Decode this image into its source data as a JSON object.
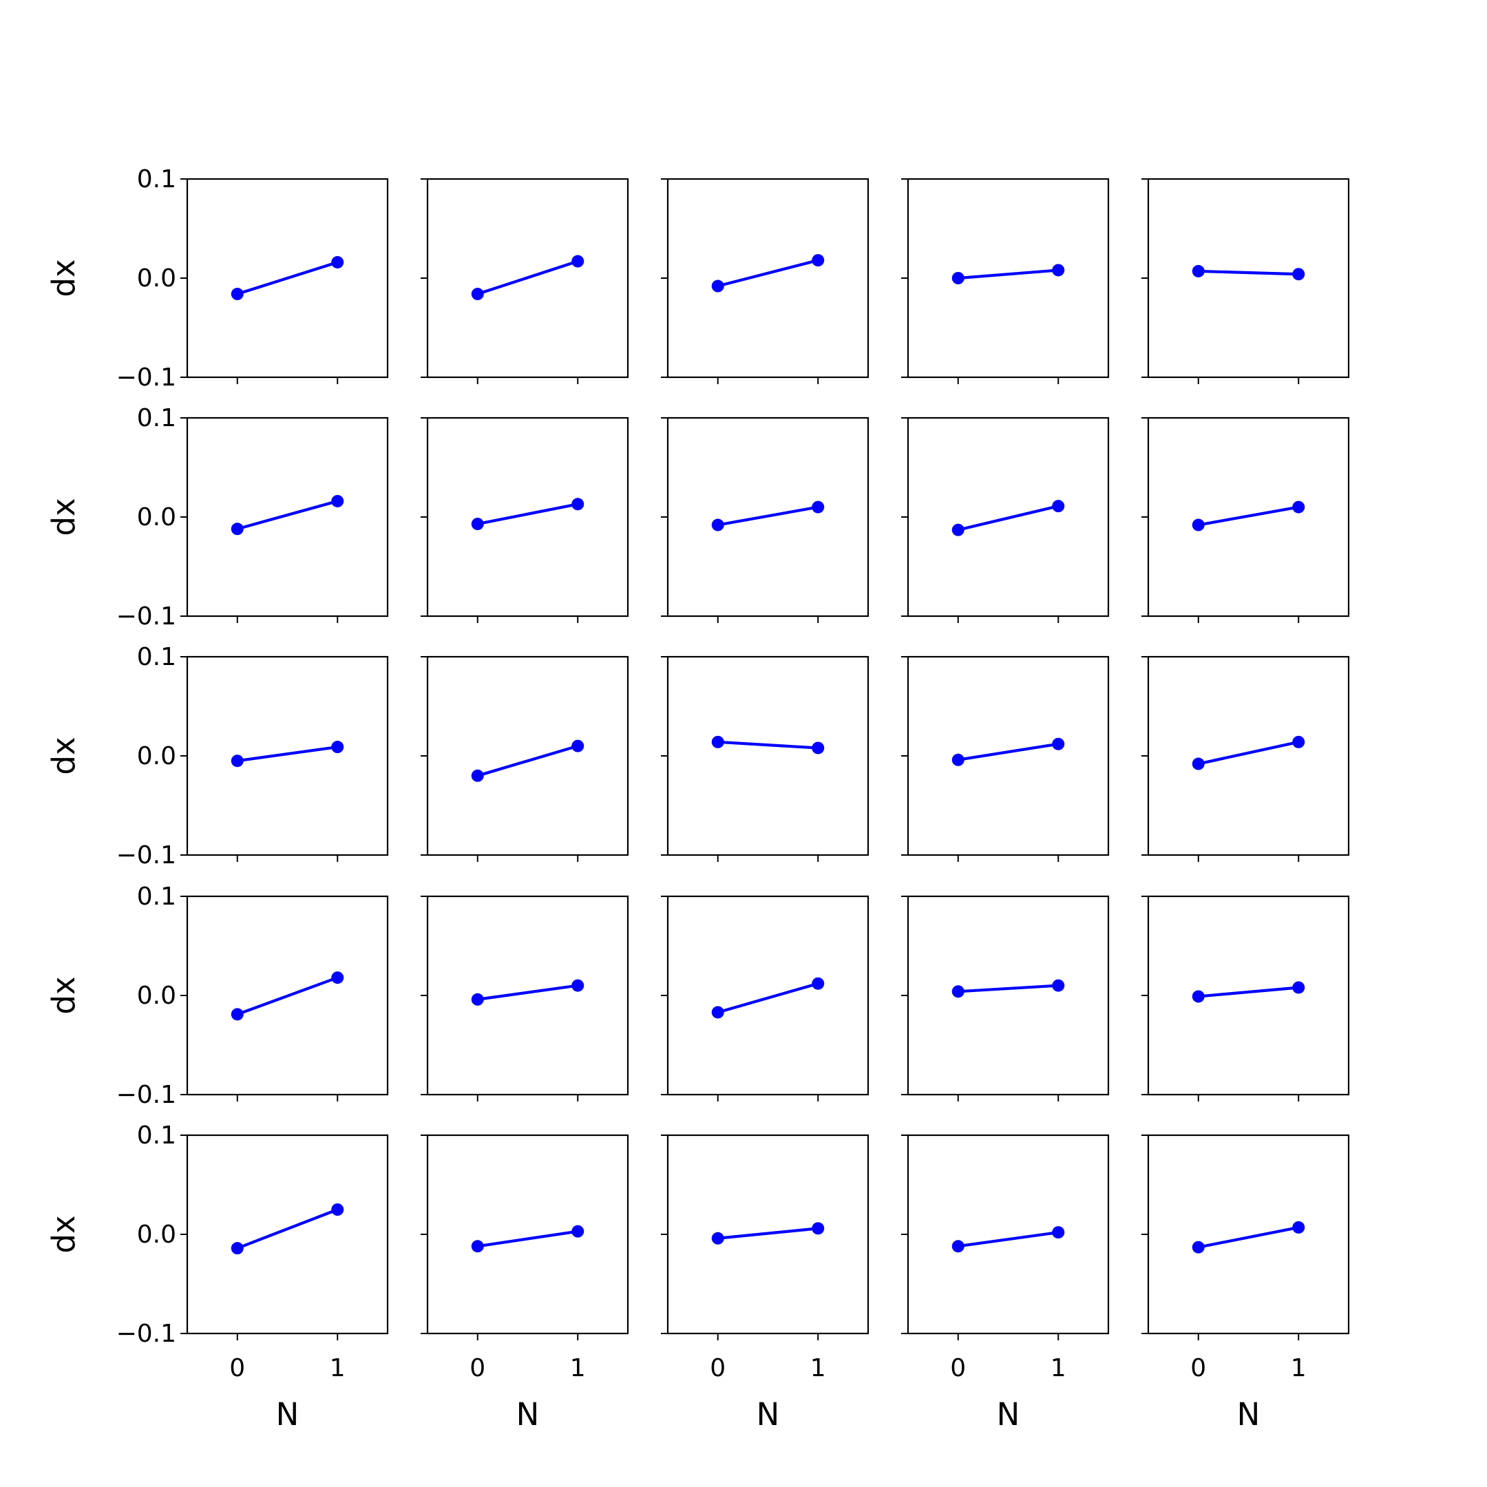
{
  "chart_data": {
    "type": "line",
    "layout": {
      "rows": 5,
      "cols": 5
    },
    "shared": {
      "x_ticks": [
        0,
        1
      ],
      "x_tick_labels": [
        "0",
        "1"
      ],
      "xlim": [
        -0.5,
        1.5
      ],
      "y_ticks": [
        0.1,
        0.0,
        -0.1
      ],
      "y_tick_labels": [
        "0.1",
        "0.0",
        "−0.1"
      ],
      "ylim": [
        -0.1,
        0.1
      ],
      "xlabel": "N",
      "ylabel": "dx",
      "grid": false,
      "line_color": "#0000ff",
      "marker": "circle"
    },
    "panels": [
      [
        {
          "x": [
            0,
            1
          ],
          "y": [
            -0.016,
            0.016
          ]
        },
        {
          "x": [
            0,
            1
          ],
          "y": [
            -0.016,
            0.017
          ]
        },
        {
          "x": [
            0,
            1
          ],
          "y": [
            -0.008,
            0.018
          ]
        },
        {
          "x": [
            0,
            1
          ],
          "y": [
            0.0,
            0.008
          ]
        },
        {
          "x": [
            0,
            1
          ],
          "y": [
            0.007,
            0.004
          ]
        }
      ],
      [
        {
          "x": [
            0,
            1
          ],
          "y": [
            -0.012,
            0.016
          ]
        },
        {
          "x": [
            0,
            1
          ],
          "y": [
            -0.007,
            0.013
          ]
        },
        {
          "x": [
            0,
            1
          ],
          "y": [
            -0.008,
            0.01
          ]
        },
        {
          "x": [
            0,
            1
          ],
          "y": [
            -0.013,
            0.011
          ]
        },
        {
          "x": [
            0,
            1
          ],
          "y": [
            -0.008,
            0.01
          ]
        }
      ],
      [
        {
          "x": [
            0,
            1
          ],
          "y": [
            -0.005,
            0.009
          ]
        },
        {
          "x": [
            0,
            1
          ],
          "y": [
            -0.02,
            0.01
          ]
        },
        {
          "x": [
            0,
            1
          ],
          "y": [
            0.014,
            0.008
          ]
        },
        {
          "x": [
            0,
            1
          ],
          "y": [
            -0.004,
            0.012
          ]
        },
        {
          "x": [
            0,
            1
          ],
          "y": [
            -0.008,
            0.014
          ]
        }
      ],
      [
        {
          "x": [
            0,
            1
          ],
          "y": [
            -0.019,
            0.018
          ]
        },
        {
          "x": [
            0,
            1
          ],
          "y": [
            -0.004,
            0.01
          ]
        },
        {
          "x": [
            0,
            1
          ],
          "y": [
            -0.017,
            0.012
          ]
        },
        {
          "x": [
            0,
            1
          ],
          "y": [
            0.004,
            0.01
          ]
        },
        {
          "x": [
            0,
            1
          ],
          "y": [
            -0.001,
            0.008
          ]
        }
      ],
      [
        {
          "x": [
            0,
            1
          ],
          "y": [
            -0.014,
            0.025
          ]
        },
        {
          "x": [
            0,
            1
          ],
          "y": [
            -0.012,
            0.003
          ]
        },
        {
          "x": [
            0,
            1
          ],
          "y": [
            -0.004,
            0.006
          ]
        },
        {
          "x": [
            0,
            1
          ],
          "y": [
            -0.012,
            0.002
          ]
        },
        {
          "x": [
            0,
            1
          ],
          "y": [
            -0.013,
            0.007
          ]
        }
      ]
    ]
  }
}
